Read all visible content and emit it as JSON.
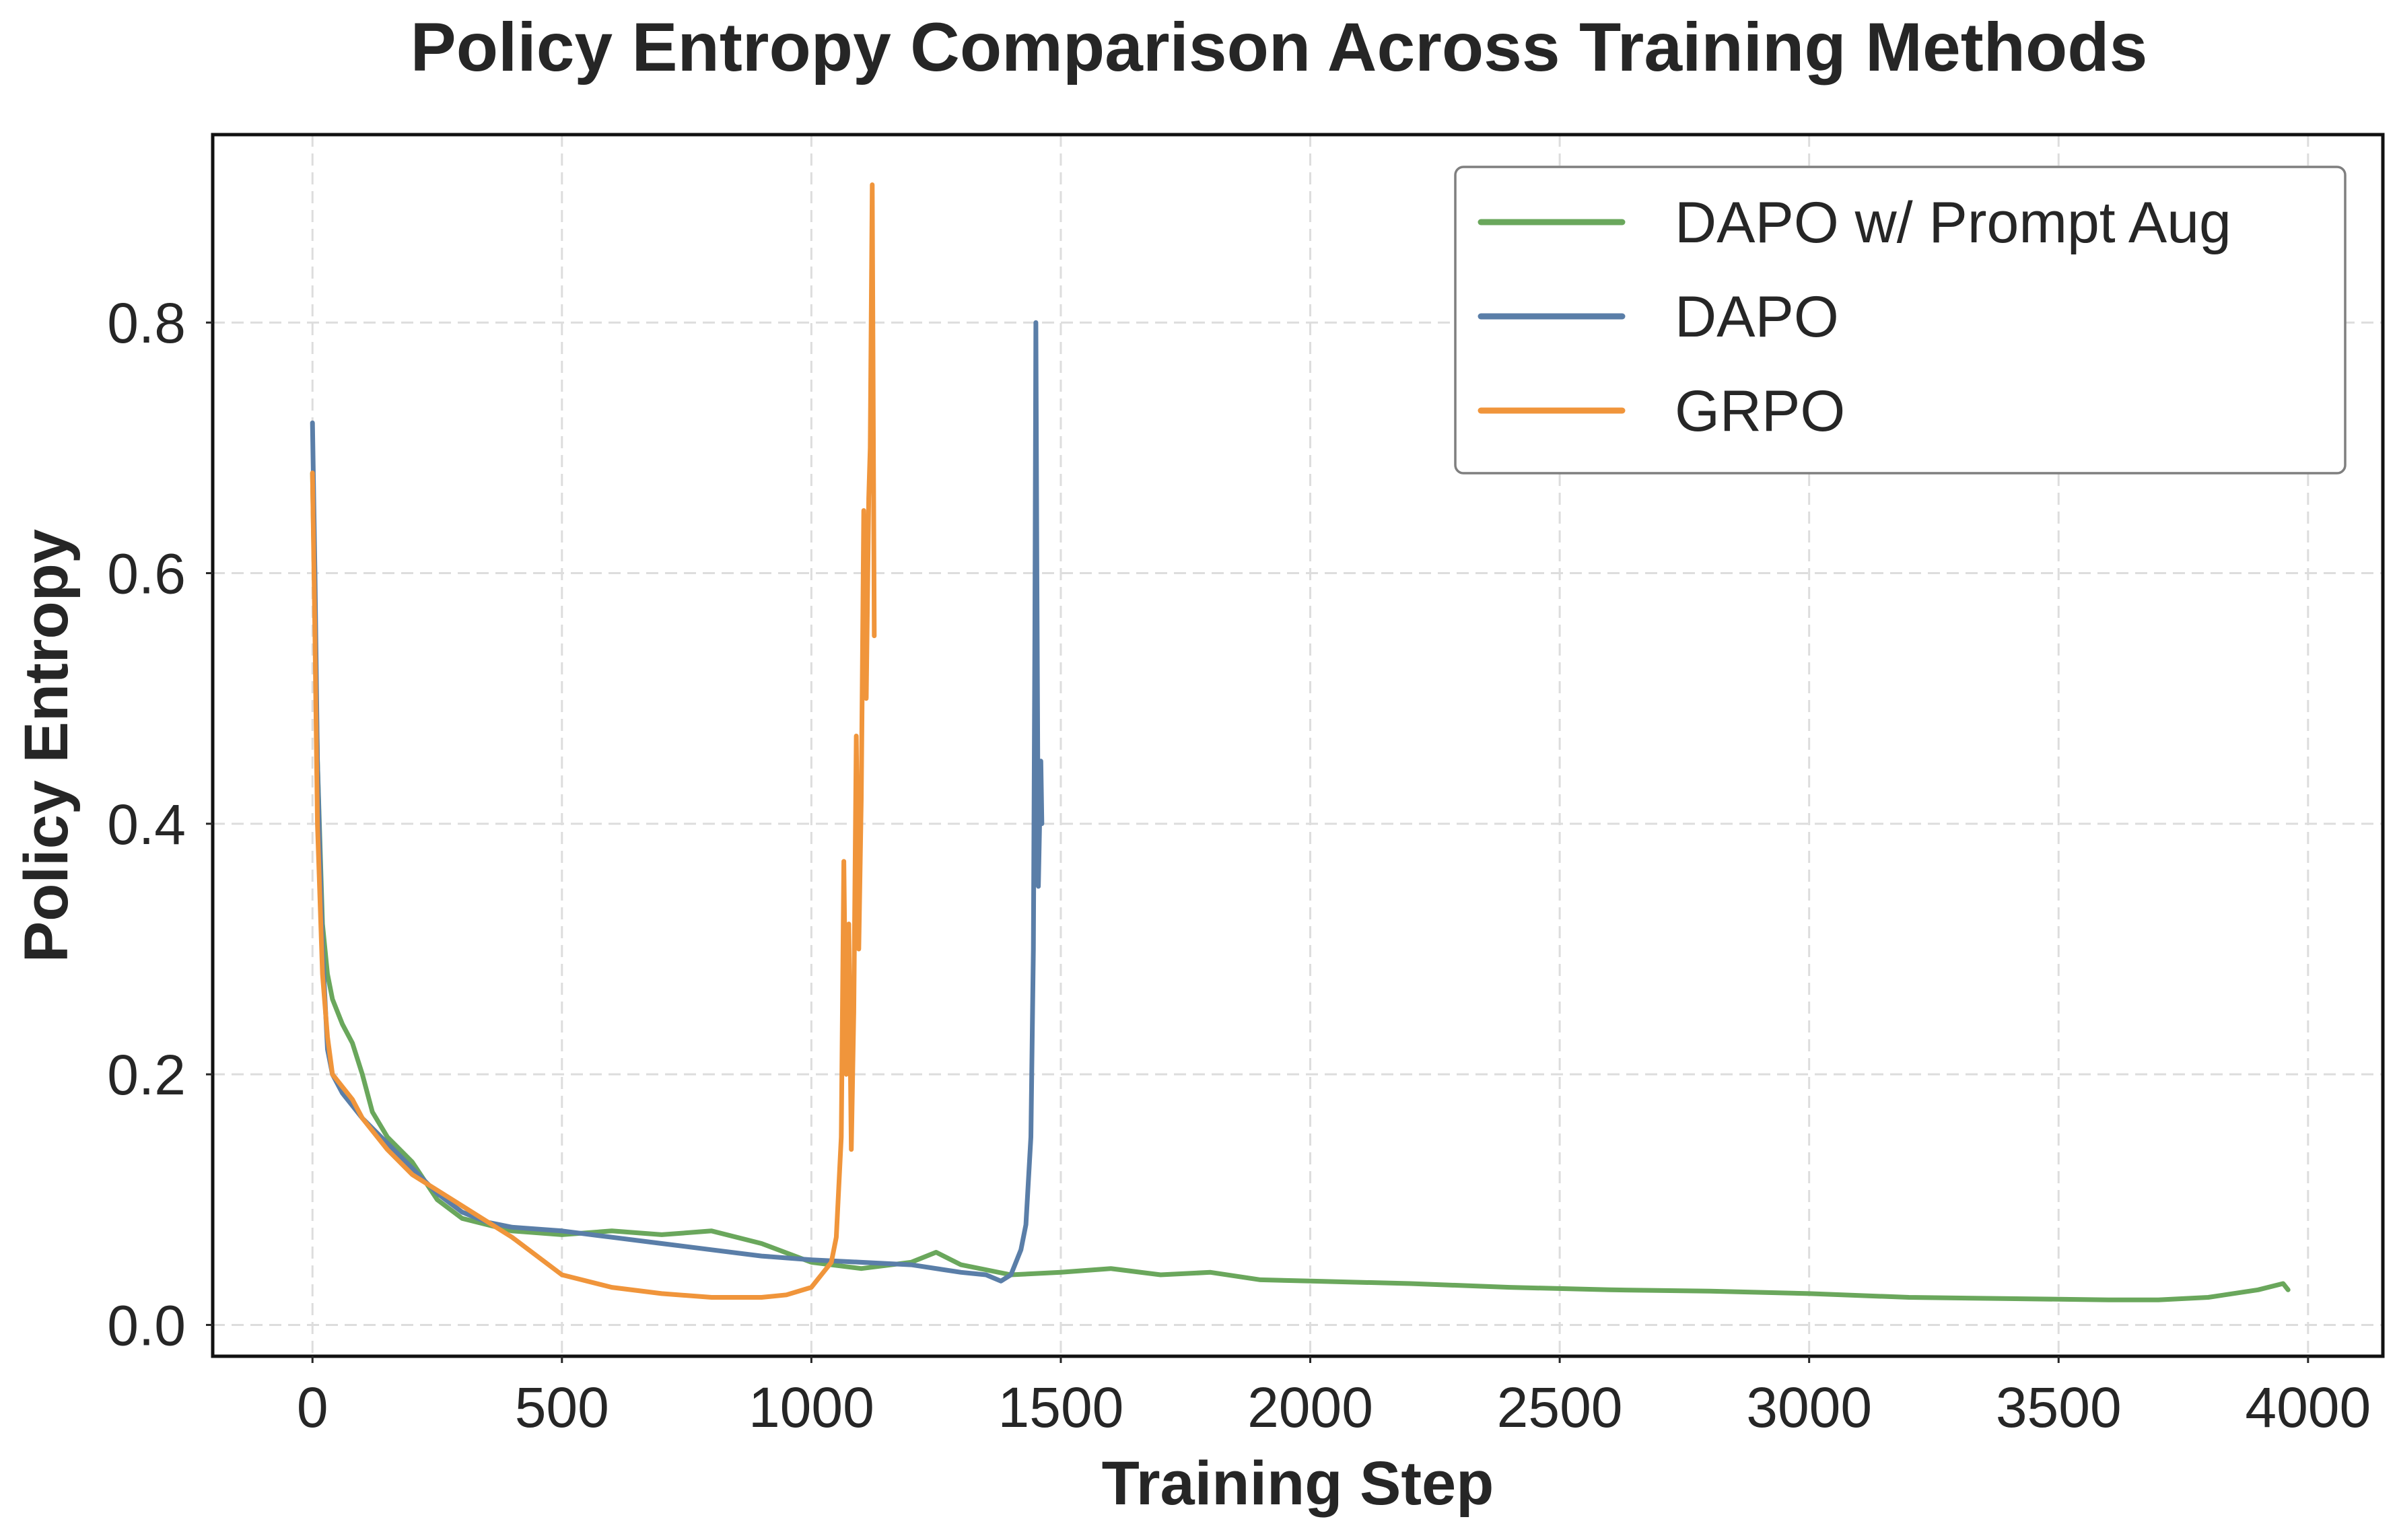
{
  "chart_data": {
    "type": "line",
    "title": "Policy Entropy Comparison Across Training Methods",
    "xlabel": "Training Step",
    "ylabel": "Policy Entropy",
    "xlim": [
      -200,
      4150
    ],
    "ylim": [
      -0.025,
      0.95
    ],
    "xticks": [
      0,
      500,
      1000,
      1500,
      2000,
      2500,
      3000,
      3500,
      4000
    ],
    "xtick_labels": [
      "0",
      "500",
      "1000",
      "1500",
      "2000",
      "2500",
      "3000",
      "3500",
      "4000"
    ],
    "yticks": [
      0.0,
      0.2,
      0.4,
      0.6,
      0.8
    ],
    "ytick_labels": [
      "0.0",
      "0.2",
      "0.4",
      "0.6",
      "0.8"
    ],
    "grid": true,
    "legend_position": "top-right",
    "series": [
      {
        "name": "DAPO w/ Prompt Aug",
        "color": "#6aa75c",
        "x": [
          0,
          10,
          20,
          30,
          40,
          60,
          80,
          100,
          120,
          150,
          200,
          250,
          300,
          350,
          400,
          500,
          600,
          700,
          800,
          900,
          1000,
          1100,
          1200,
          1250,
          1300,
          1400,
          1500,
          1600,
          1700,
          1800,
          1900,
          2000,
          2200,
          2400,
          2600,
          2800,
          3000,
          3200,
          3400,
          3600,
          3700,
          3800,
          3900,
          3950,
          3960
        ],
        "y": [
          0.68,
          0.45,
          0.32,
          0.28,
          0.26,
          0.24,
          0.225,
          0.2,
          0.17,
          0.15,
          0.13,
          0.1,
          0.085,
          0.08,
          0.075,
          0.072,
          0.075,
          0.072,
          0.075,
          0.065,
          0.05,
          0.045,
          0.05,
          0.058,
          0.048,
          0.04,
          0.042,
          0.045,
          0.04,
          0.042,
          0.036,
          0.035,
          0.033,
          0.03,
          0.028,
          0.027,
          0.025,
          0.022,
          0.021,
          0.02,
          0.02,
          0.022,
          0.028,
          0.033,
          0.028
        ]
      },
      {
        "name": "DAPO",
        "color": "#5a7ea8",
        "x": [
          0,
          5,
          10,
          20,
          30,
          40,
          60,
          80,
          100,
          150,
          200,
          250,
          300,
          350,
          400,
          500,
          600,
          700,
          800,
          900,
          1000,
          1100,
          1200,
          1300,
          1350,
          1380,
          1400,
          1420,
          1430,
          1440,
          1445,
          1448,
          1450,
          1452,
          1455,
          1460,
          1462
        ],
        "y": [
          0.72,
          0.6,
          0.45,
          0.3,
          0.22,
          0.2,
          0.185,
          0.175,
          0.165,
          0.145,
          0.125,
          0.105,
          0.09,
          0.082,
          0.078,
          0.075,
          0.07,
          0.065,
          0.06,
          0.055,
          0.052,
          0.05,
          0.048,
          0.042,
          0.04,
          0.035,
          0.04,
          0.06,
          0.08,
          0.15,
          0.3,
          0.55,
          0.8,
          0.6,
          0.35,
          0.45,
          0.4
        ]
      },
      {
        "name": "GRPO",
        "color": "#f0953b",
        "x": [
          0,
          5,
          10,
          20,
          30,
          40,
          60,
          80,
          100,
          150,
          200,
          300,
          400,
          500,
          600,
          700,
          800,
          900,
          950,
          1000,
          1020,
          1040,
          1050,
          1060,
          1065,
          1070,
          1075,
          1080,
          1085,
          1090,
          1095,
          1100,
          1105,
          1110,
          1115,
          1118,
          1122,
          1126
        ],
        "y": [
          0.68,
          0.55,
          0.4,
          0.28,
          0.23,
          0.2,
          0.19,
          0.18,
          0.165,
          0.14,
          0.12,
          0.095,
          0.07,
          0.04,
          0.03,
          0.025,
          0.022,
          0.022,
          0.024,
          0.03,
          0.04,
          0.05,
          0.07,
          0.15,
          0.37,
          0.2,
          0.32,
          0.14,
          0.25,
          0.47,
          0.3,
          0.42,
          0.65,
          0.5,
          0.66,
          0.7,
          0.91,
          0.55
        ]
      }
    ]
  }
}
